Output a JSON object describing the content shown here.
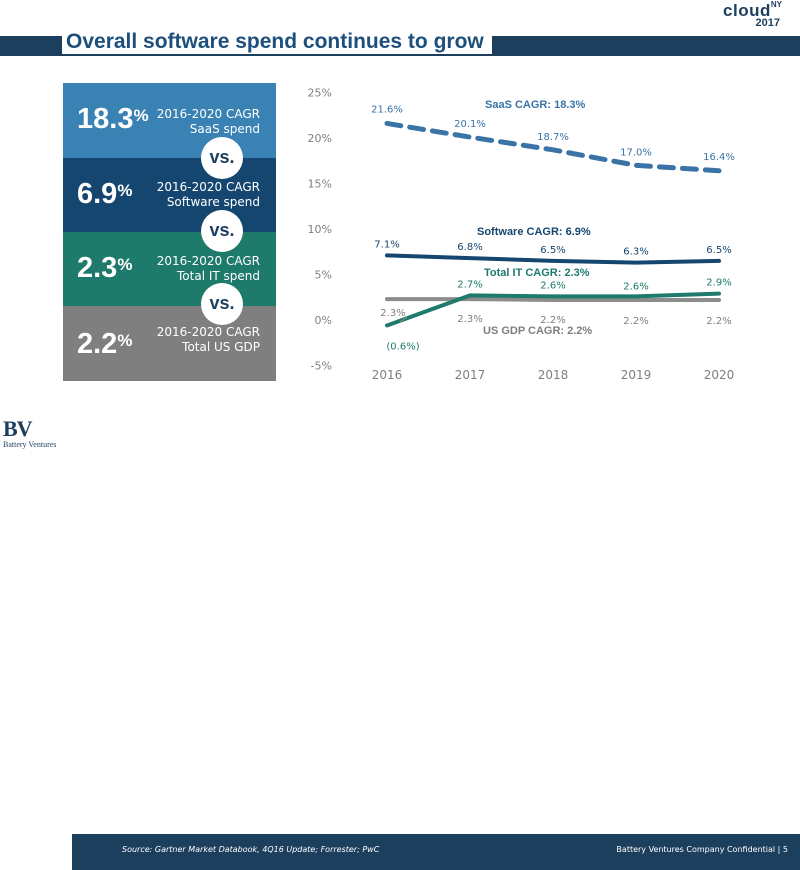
{
  "header": {
    "title": "Overall software spend continues to grow"
  },
  "logo": {
    "word": "cloud",
    "sup": "NY",
    "year": "2017"
  },
  "panel": {
    "blocks": [
      {
        "pct": "18.3",
        "sign": "%",
        "line1": "2016-2020 CAGR",
        "line2": "SaaS spend",
        "color": "#3a82b4"
      },
      {
        "pct": "6.9",
        "sign": "%",
        "line1": "2016-2020 CAGR",
        "line2": "Software spend",
        "color": "#15466f"
      },
      {
        "pct": "2.3",
        "sign": "%",
        "line1": "2016-2020 CAGR",
        "line2": "Total IT spend",
        "color": "#1e7a6a"
      },
      {
        "pct": "2.2",
        "sign": "%",
        "line1": "2016-2020 CAGR",
        "line2": "Total US GDP",
        "color": "#7f7f7f"
      }
    ],
    "vs_label": "vs."
  },
  "chart_data": {
    "type": "line",
    "x": [
      "2016",
      "2017",
      "2018",
      "2019",
      "2020"
    ],
    "ylim": [
      -5,
      25
    ],
    "yticks": [
      25,
      20,
      15,
      10,
      5,
      0,
      -5
    ],
    "ytick_labels": [
      "25%",
      "20%",
      "15%",
      "10%",
      "5%",
      "0%",
      "-5%"
    ],
    "series": [
      {
        "name": "SaaS",
        "values": [
          21.6,
          20.1,
          18.7,
          17.0,
          16.4
        ],
        "labels": [
          "21.6%",
          "20.1%",
          "18.7%",
          "17.0%",
          "16.4%"
        ],
        "color": "#3a73a6",
        "dash": true
      },
      {
        "name": "Software",
        "values": [
          7.1,
          6.8,
          6.5,
          6.3,
          6.5
        ],
        "labels": [
          "7.1%",
          "6.8%",
          "6.5%",
          "6.3%",
          "6.5%"
        ],
        "color": "#15466f",
        "dash": false
      },
      {
        "name": "Total IT",
        "values": [
          -0.6,
          2.7,
          2.6,
          2.6,
          2.9
        ],
        "labels": [
          "(0.6%)",
          "2.7%",
          "2.6%",
          "2.6%",
          "2.9%"
        ],
        "color": "#1e7a6a",
        "dash": false
      },
      {
        "name": "US GDP",
        "values": [
          2.3,
          2.3,
          2.2,
          2.2,
          2.2
        ],
        "labels": [
          "2.3%",
          "2.3%",
          "2.2%",
          "2.2%",
          "2.2%"
        ],
        "color": "#8c8c8c",
        "dash": false
      }
    ],
    "annotations": [
      {
        "text": "SaaS CAGR: 18.3%",
        "color": "#3a73a6"
      },
      {
        "text": "Software CAGR: 6.9%",
        "color": "#15466f"
      },
      {
        "text": "Total IT CAGR: 2.3%",
        "color": "#1e7a6a"
      },
      {
        "text": "US GDP CAGR: 2.2%",
        "color": "#7f7f7f"
      }
    ]
  },
  "footer": {
    "source": "Source: Gartner Market Databook, 4Q16 Update; Forrester; PwC",
    "confidential": "Battery Ventures Company Confidential  |  5"
  },
  "brand": {
    "mark": "BV",
    "name": "Battery Ventures"
  }
}
